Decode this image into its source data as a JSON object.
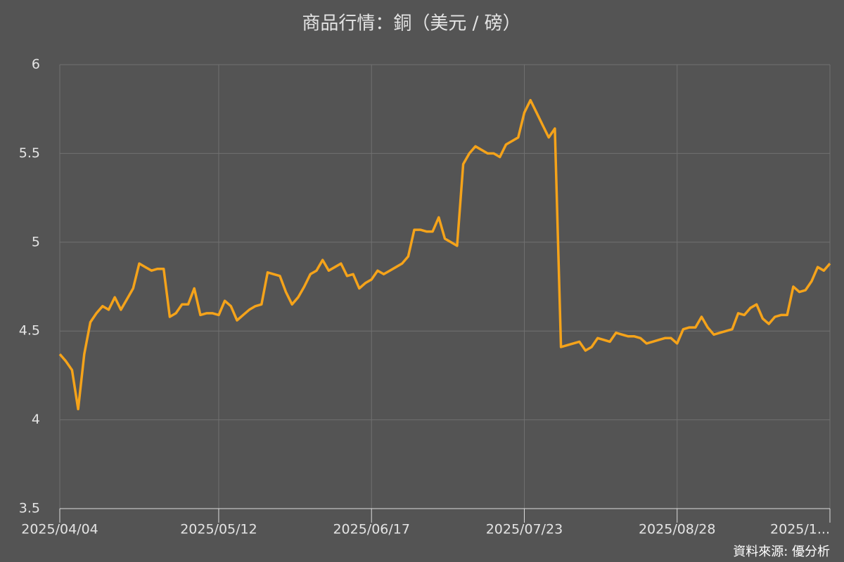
{
  "chart_data": {
    "type": "line",
    "title": "商品行情：銅（美元 / 磅）",
    "source": "資料來源: 優分析",
    "categories": [
      "2025/04/04",
      null,
      null,
      null,
      null,
      null,
      null,
      null,
      null,
      null,
      null,
      null,
      null,
      null,
      null,
      null,
      null,
      null,
      null,
      null,
      null,
      null,
      null,
      null,
      null,
      null,
      "2025/05/12",
      null,
      null,
      null,
      null,
      null,
      null,
      null,
      null,
      null,
      null,
      null,
      null,
      null,
      null,
      null,
      null,
      null,
      null,
      null,
      null,
      null,
      null,
      null,
      null,
      "2025/06/17",
      null,
      null,
      null,
      null,
      null,
      null,
      null,
      null,
      null,
      null,
      null,
      null,
      null,
      null,
      null,
      null,
      null,
      null,
      null,
      null,
      null,
      null,
      null,
      null,
      "2025/07/23",
      null,
      null,
      null,
      null,
      null,
      null,
      null,
      null,
      null,
      null,
      null,
      null,
      null,
      null,
      null,
      null,
      null,
      null,
      null,
      null,
      null,
      null,
      null,
      null,
      "2025/08/28",
      null,
      null,
      null,
      null,
      null,
      null,
      null,
      null,
      null,
      null,
      null,
      null,
      null,
      null,
      null,
      null,
      null,
      null,
      null,
      null,
      null,
      null,
      null,
      null,
      "2025/1..."
    ],
    "series": [
      {
        "name": "銅",
        "color": "#f5a31a",
        "values": [
          4.37,
          4.33,
          4.28,
          4.06,
          4.37,
          4.55,
          4.6,
          4.64,
          4.62,
          4.69,
          4.62,
          4.68,
          4.74,
          4.88,
          4.86,
          4.84,
          4.85,
          4.85,
          4.58,
          4.6,
          4.65,
          4.65,
          4.74,
          4.59,
          4.6,
          4.6,
          4.59,
          4.67,
          4.64,
          4.56,
          4.59,
          4.62,
          4.64,
          4.65,
          4.83,
          4.82,
          4.81,
          4.72,
          4.65,
          4.69,
          4.75,
          4.82,
          4.84,
          4.9,
          4.84,
          4.86,
          4.88,
          4.81,
          4.82,
          4.74,
          4.77,
          4.79,
          4.84,
          4.82,
          4.84,
          4.86,
          4.88,
          4.92,
          5.07,
          5.07,
          5.06,
          5.06,
          5.14,
          5.02,
          5.0,
          4.98,
          5.44,
          5.5,
          5.54,
          5.52,
          5.5,
          5.5,
          5.48,
          5.55,
          5.57,
          5.59,
          5.73,
          5.8,
          5.73,
          5.66,
          5.59,
          5.64,
          4.41,
          4.42,
          4.43,
          4.44,
          4.39,
          4.41,
          4.46,
          4.45,
          4.44,
          4.49,
          4.48,
          4.47,
          4.47,
          4.46,
          4.43,
          4.44,
          4.45,
          4.46,
          4.46,
          4.43,
          4.51,
          4.52,
          4.52,
          4.58,
          4.52,
          4.48,
          4.49,
          4.5,
          4.51,
          4.6,
          4.59,
          4.63,
          4.65,
          4.57,
          4.54,
          4.58,
          4.59,
          4.59,
          4.75,
          4.72,
          4.73,
          4.78,
          4.86,
          4.84,
          4.88
        ]
      }
    ],
    "ylim": [
      3.5,
      6
    ],
    "yticks": [
      3.5,
      4,
      4.5,
      5,
      5.5,
      6
    ],
    "grid": true
  }
}
